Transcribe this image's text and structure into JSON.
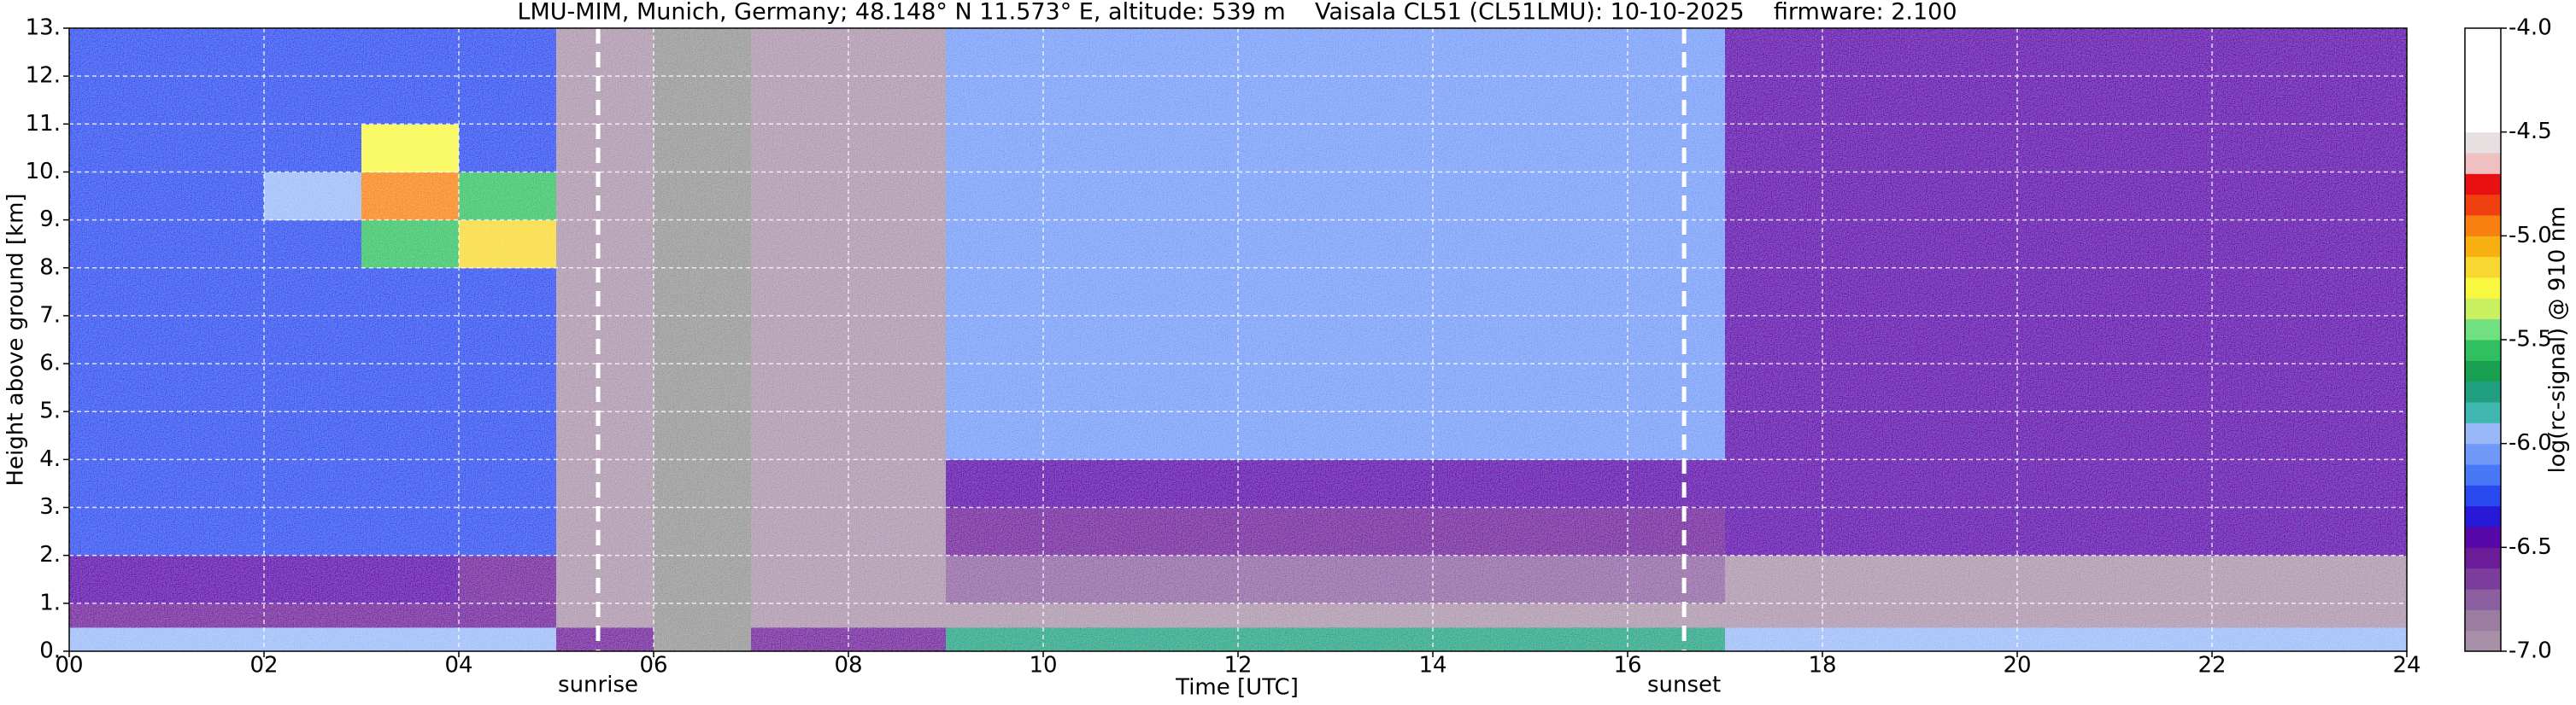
{
  "chart_data": {
    "type": "heatmap",
    "title": "LMU-MIM, Munich, Germany; 48.148° N 11.573° E, altitude: 539 m    Vaisala CL51 (CL51LMU): 10-10-2025    firmware: 2.100",
    "x_label": "Time [UTC]",
    "y_label": "Height above ground [km]",
    "xlim": [
      0,
      24
    ],
    "xticks": [
      {
        "value": 0,
        "label": "00"
      },
      {
        "value": 2,
        "label": "02"
      },
      {
        "value": 4,
        "label": "04"
      },
      {
        "value": 6,
        "label": "06"
      },
      {
        "value": 8,
        "label": "08"
      },
      10,
      12,
      14,
      16,
      18,
      20,
      22,
      24
    ],
    "ylim": [
      0,
      13
    ],
    "yticks": [
      {
        "value": 0,
        "label": "0."
      },
      {
        "value": 1,
        "label": "1."
      },
      {
        "value": 2,
        "label": "2."
      },
      {
        "value": 3,
        "label": "3."
      },
      {
        "value": 4,
        "label": "4."
      },
      {
        "value": 5,
        "label": "5."
      },
      {
        "value": 6,
        "label": "6."
      },
      {
        "value": 7,
        "label": "7."
      },
      {
        "value": 8,
        "label": "8."
      },
      {
        "value": 9,
        "label": "9."
      },
      {
        "value": 10,
        "label": "10."
      },
      {
        "value": 11,
        "label": "11."
      },
      {
        "value": 12,
        "label": "12."
      },
      {
        "value": 13,
        "label": "13."
      }
    ],
    "grid": true,
    "xbins": [
      0,
      1,
      2,
      3,
      4,
      5,
      6,
      7,
      8,
      9,
      10,
      11,
      12,
      13,
      14,
      15,
      16,
      17,
      18,
      19,
      20,
      21,
      22,
      23,
      24
    ],
    "ybins": [
      0,
      0.5,
      1,
      2,
      3,
      4,
      5,
      6,
      7,
      8,
      9,
      10,
      11,
      12,
      13
    ],
    "z": [
      [
        -5.9,
        -5.9,
        -5.9,
        -5.9,
        -5.9,
        -6.6,
        null,
        -6.6,
        -6.6,
        -5.7,
        -5.7,
        -5.7,
        -5.7,
        -5.7,
        -5.7,
        -5.7,
        -5.7,
        -6.0,
        -6.0,
        -6.0,
        -6.0,
        -6.0,
        -6.0,
        -6.0
      ],
      [
        -6.6,
        -6.6,
        -6.6,
        -6.6,
        -6.6,
        -6.9,
        null,
        -6.9,
        -6.9,
        -6.9,
        -6.9,
        -6.9,
        -6.9,
        -6.9,
        -6.9,
        -6.9,
        -6.9,
        -7.0,
        -7.0,
        -7.0,
        -7.0,
        -7.0,
        -7.0,
        -7.0
      ],
      [
        -6.5,
        -6.5,
        -6.5,
        -6.5,
        -6.6,
        -6.9,
        null,
        -6.9,
        -6.9,
        -6.8,
        -6.8,
        -6.8,
        -6.8,
        -6.8,
        -6.8,
        -6.8,
        -6.8,
        -7.0,
        -7.0,
        -7.0,
        -7.0,
        -7.0,
        -7.0,
        -7.0
      ],
      [
        -6.3,
        -6.3,
        -6.3,
        -6.3,
        -6.3,
        -6.9,
        null,
        -6.9,
        -6.9,
        -6.6,
        -6.6,
        -6.6,
        -6.6,
        -6.6,
        -6.6,
        -6.6,
        -6.6,
        -6.5,
        -6.5,
        -6.5,
        -6.5,
        -6.5,
        -6.5,
        -6.5
      ],
      [
        -6.3,
        -6.3,
        -6.3,
        -6.3,
        -6.3,
        -6.9,
        null,
        -6.9,
        -6.9,
        -6.4,
        -6.4,
        -6.4,
        -6.4,
        -6.4,
        -6.4,
        -6.4,
        -6.4,
        -6.5,
        -6.5,
        -6.5,
        -6.5,
        -6.5,
        -6.5,
        -6.5
      ],
      [
        -6.3,
        -6.3,
        -6.3,
        -6.3,
        -6.3,
        -6.9,
        null,
        -6.9,
        -6.9,
        -6.1,
        -6.1,
        -6.1,
        -6.1,
        -6.1,
        -6.1,
        -6.1,
        -6.1,
        -6.4,
        -6.4,
        -6.4,
        -6.4,
        -6.4,
        -6.4,
        -6.4
      ],
      [
        -6.3,
        -6.3,
        -6.3,
        -6.3,
        -6.3,
        -6.9,
        null,
        -6.9,
        -6.9,
        -6.1,
        -6.1,
        -6.1,
        -6.1,
        -6.1,
        -6.1,
        -6.1,
        -6.1,
        -6.4,
        -6.4,
        -6.4,
        -6.4,
        -6.4,
        -6.4,
        -6.4
      ],
      [
        -6.3,
        -6.3,
        -6.3,
        -6.3,
        -6.3,
        -6.9,
        null,
        -6.9,
        -6.9,
        -6.1,
        -6.1,
        -6.1,
        -6.1,
        -6.1,
        -6.1,
        -6.1,
        -6.1,
        -6.4,
        -6.4,
        -6.4,
        -6.4,
        -6.4,
        -6.4,
        -6.4
      ],
      [
        -6.3,
        -6.3,
        -6.3,
        -6.3,
        -6.3,
        -6.9,
        null,
        -6.9,
        -6.9,
        -6.1,
        -6.1,
        -6.1,
        -6.1,
        -6.1,
        -6.1,
        -6.1,
        -6.1,
        -6.4,
        -6.4,
        -6.4,
        -6.4,
        -6.4,
        -6.4,
        -6.4
      ],
      [
        -6.3,
        -6.3,
        -6.3,
        -5.6,
        -5.2,
        -6.9,
        null,
        -6.9,
        -6.9,
        -6.1,
        -6.1,
        -6.1,
        -6.1,
        -6.1,
        -6.1,
        -6.1,
        -6.1,
        -6.4,
        -6.4,
        -6.4,
        -6.4,
        -6.4,
        -6.4,
        -6.4
      ],
      [
        -6.3,
        -6.3,
        -6.0,
        -5.0,
        -5.6,
        -6.9,
        null,
        -6.9,
        -6.9,
        -6.1,
        -6.1,
        -6.1,
        -6.1,
        -6.1,
        -6.1,
        -6.1,
        -6.1,
        -6.4,
        -6.4,
        -6.4,
        -6.4,
        -6.4,
        -6.4,
        -6.4
      ],
      [
        -6.3,
        -6.3,
        -6.3,
        -5.3,
        -6.3,
        -6.9,
        null,
        -6.9,
        -6.9,
        -6.1,
        -6.1,
        -6.1,
        -6.1,
        -6.1,
        -6.1,
        -6.1,
        -6.1,
        -6.4,
        -6.4,
        -6.4,
        -6.4,
        -6.4,
        -6.4,
        -6.4
      ],
      [
        -6.3,
        -6.3,
        -6.3,
        -6.3,
        -6.3,
        -6.9,
        null,
        -6.9,
        -6.9,
        -6.1,
        -6.1,
        -6.1,
        -6.1,
        -6.1,
        -6.1,
        -6.1,
        -6.1,
        -6.4,
        -6.4,
        -6.4,
        -6.4,
        -6.4,
        -6.4,
        -6.4
      ],
      [
        -6.3,
        -6.3,
        -6.3,
        -6.3,
        -6.3,
        -6.9,
        null,
        -6.9,
        -6.9,
        -6.1,
        -6.1,
        -6.1,
        -6.1,
        -6.1,
        -6.1,
        -6.1,
        -6.1,
        -6.4,
        -6.4,
        -6.4,
        -6.4,
        -6.4,
        -6.4,
        -6.4
      ]
    ],
    "annotations": [
      {
        "text": "sunrise",
        "x": 5.43
      },
      {
        "text": "sunset",
        "x": 16.58
      }
    ],
    "colorbar": {
      "label": "log(rc-signal) @ 910 nm",
      "clim": [
        -7,
        -4
      ],
      "ticks": [
        {
          "value": -4,
          "label": "-4.0"
        },
        -4.5,
        {
          "value": -5,
          "label": "-5.0"
        },
        -5.5,
        {
          "value": -6,
          "label": "-6.0"
        },
        -6.5,
        {
          "value": -7,
          "label": "-7.0"
        }
      ],
      "colors": [
        "#a890a8",
        "#9c7ca0",
        "#8c60a0",
        "#7c3c9c",
        "#6c1c98",
        "#5808a8",
        "#2818d8",
        "#2848f0",
        "#4878f8",
        "#7098f8",
        "#98b8f8",
        "#40b8b0",
        "#20a080",
        "#18a050",
        "#30c060",
        "#70e080",
        "#c8f060",
        "#f8f840",
        "#f8d830",
        "#f8b010",
        "#f88010",
        "#f04010",
        "#e81010",
        "#f0c0c0",
        "#e8e0e0",
        "#ffffff",
        "#ffffff",
        "#ffffff",
        "#ffffff",
        "#ffffff"
      ]
    }
  }
}
